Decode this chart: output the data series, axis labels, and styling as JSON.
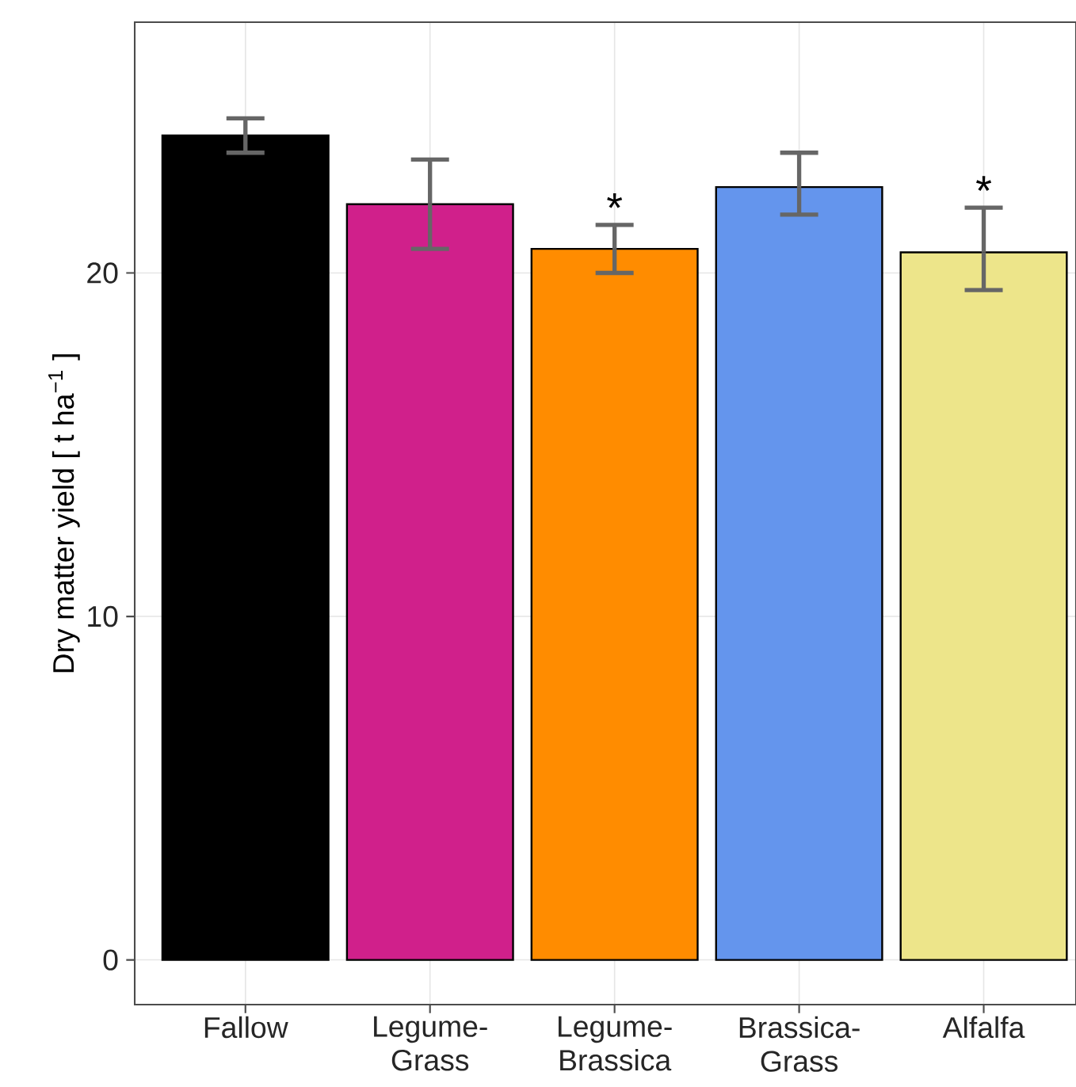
{
  "chart_data": {
    "type": "bar",
    "ylabel": "Dry matter yield [ t ha$^{−1}$ ]",
    "categories": [
      "Fallow",
      "Legume-Grass",
      "Legume-Brassica",
      "Brassica-Grass",
      "Alfalfa"
    ],
    "values": [
      24.0,
      22.0,
      20.7,
      22.5,
      20.6
    ],
    "colors": [
      "#000000",
      "#d0208b",
      "#ff8c00",
      "#6495ed",
      "#ede58a"
    ],
    "errors": [
      [
        23.5,
        24.5
      ],
      [
        20.7,
        23.3
      ],
      [
        20.0,
        21.4
      ],
      [
        21.7,
        23.5
      ],
      [
        19.5,
        21.9
      ]
    ],
    "value_labels": [
      null,
      null,
      "*",
      null,
      "*"
    ],
    "ylim": [
      -1.3,
      27.3
    ],
    "yticks": [
      0,
      10,
      20
    ],
    "grid": true
  }
}
